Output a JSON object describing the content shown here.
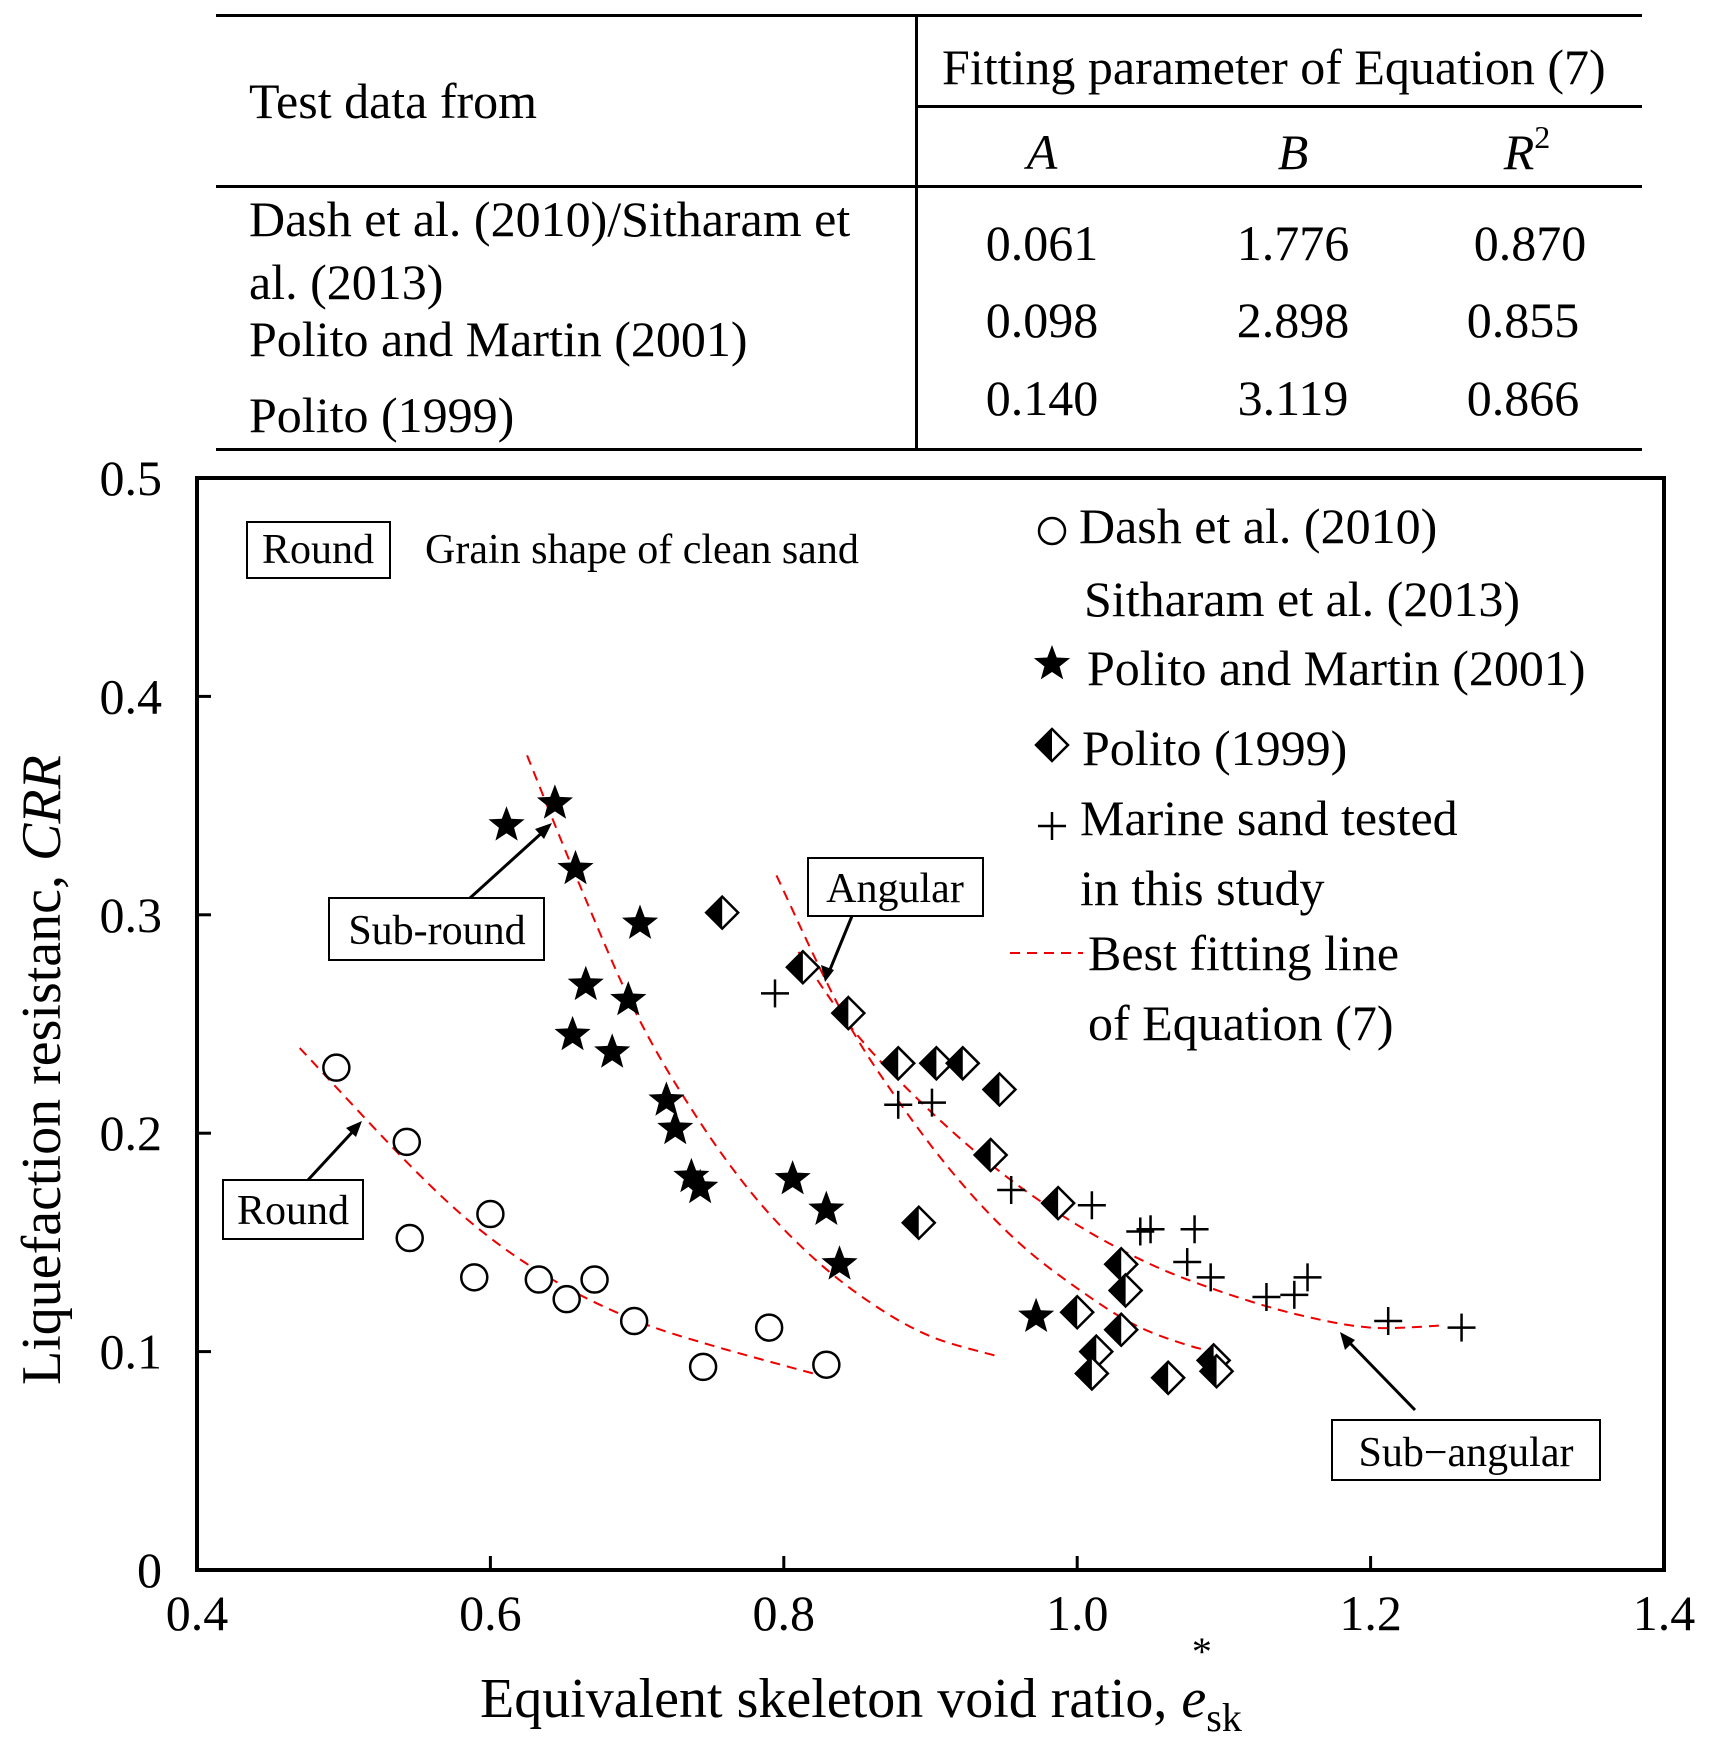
{
  "table": {
    "col_header_left": "Test data from",
    "col_header_group": "Fitting parameter of Equation (7)",
    "param_headers": {
      "a": "A",
      "b": "B",
      "r2_base": "R",
      "r2_sup": "2"
    },
    "rows": [
      {
        "line1": "Dash et al. (2010)/Sitharam et",
        "line2": "al. (2013)",
        "A": "0.061",
        "B": "1.776",
        "R2": "0.870"
      },
      {
        "line1": "Polito and Martin (2001)",
        "A": "0.098",
        "B": "2.898",
        "R2": "0.855"
      },
      {
        "line1": "Polito (1999)",
        "A": "0.140",
        "B": "3.119",
        "R2": "0.866"
      }
    ]
  },
  "chart_data": {
    "type": "scatter",
    "xlabel": "Equivalent skeleton void ratio, ",
    "xlabel_var": "e",
    "xlabel_sub": "sk",
    "xlabel_sup": "*",
    "ylabel": "Liquefaction resistanc, ",
    "ylabel_var": "CRR",
    "xlim": [
      0.4,
      1.4
    ],
    "ylim": [
      0,
      0.5
    ],
    "xticks": [
      "0.4",
      "0.6",
      "0.8",
      "1.0",
      "1.2",
      "1.4"
    ],
    "yticks": [
      "0",
      "0.1",
      "0.2",
      "0.3",
      "0.4",
      "0.5"
    ],
    "grid": false,
    "legend": {
      "position": "top-right",
      "entries": [
        {
          "marker": "circle",
          "line1": "Dash et al. (2010)",
          "line2": "Sitharam et al. (2013)"
        },
        {
          "marker": "star",
          "line1": "Polito and Martin (2001)"
        },
        {
          "marker": "diamond",
          "line1": "Polito (1999)"
        },
        {
          "marker": "plus",
          "line1": "Marine sand tested",
          "line2": "in this study"
        },
        {
          "marker": "dashed-line",
          "line1": "Best fitting line",
          "line2": "of Equation (7)"
        }
      ]
    },
    "header_box": "Round",
    "header_text": "Grain shape of clean sand",
    "annotations": [
      {
        "label": "Round",
        "x": 0.51,
        "y": 0.206
      },
      {
        "label": "Sub-round",
        "x": 0.64,
        "y": 0.336
      },
      {
        "label": "Angular",
        "x": 0.815,
        "y": 0.272
      },
      {
        "label": "Sub−angular",
        "x": 1.18,
        "y": 0.112
      }
    ],
    "series": [
      {
        "name": "Dash et al. (2010) / Sitharam et al. (2013)",
        "marker": "circle",
        "x": [
          0.495,
          0.543,
          0.545,
          0.589,
          0.6,
          0.633,
          0.652,
          0.671,
          0.698,
          0.745,
          0.79,
          0.829
        ],
        "y": [
          0.23,
          0.196,
          0.152,
          0.134,
          0.163,
          0.133,
          0.124,
          0.133,
          0.114,
          0.093,
          0.111,
          0.094
        ]
      },
      {
        "name": "Polito and Martin (2001)",
        "marker": "star",
        "x": [
          0.611,
          0.644,
          0.658,
          0.656,
          0.665,
          0.683,
          0.702,
          0.694,
          0.72,
          0.726,
          0.737,
          0.743,
          0.806,
          0.829,
          0.838,
          0.972
        ],
        "y": [
          0.341,
          0.351,
          0.321,
          0.245,
          0.268,
          0.237,
          0.296,
          0.261,
          0.215,
          0.202,
          0.18,
          0.175,
          0.179,
          0.165,
          0.14,
          0.116
        ]
      },
      {
        "name": "Polito (1999)",
        "marker": "diamond",
        "x": [
          0.758,
          0.813,
          0.844,
          0.878,
          0.904,
          0.922,
          0.947,
          0.941,
          0.892,
          0.987,
          1.03,
          1.033,
          1.0,
          1.013,
          1.01,
          1.03,
          1.062,
          1.093,
          1.095
        ],
        "y": [
          0.301,
          0.276,
          0.255,
          0.232,
          0.232,
          0.232,
          0.22,
          0.19,
          0.159,
          0.168,
          0.14,
          0.128,
          0.118,
          0.1,
          0.09,
          0.11,
          0.088,
          0.096,
          0.091
        ],
        "marker_style": "half-filled"
      },
      {
        "name": "Marine sand tested in this study",
        "marker": "plus",
        "x": [
          0.794,
          0.878,
          0.901,
          0.955,
          1.01,
          1.043,
          1.05,
          1.08,
          1.075,
          1.091,
          1.129,
          1.148,
          1.157,
          1.212,
          1.262
        ],
        "y": [
          0.264,
          0.213,
          0.214,
          0.174,
          0.167,
          0.155,
          0.156,
          0.156,
          0.141,
          0.134,
          0.125,
          0.126,
          0.134,
          0.114,
          0.111
        ]
      }
    ],
    "fit_lines": [
      {
        "name": "Round fit",
        "x": [
          0.47,
          0.55,
          0.6,
          0.65,
          0.7,
          0.75,
          0.82
        ],
        "y": [
          0.239,
          0.182,
          0.152,
          0.13,
          0.114,
          0.103,
          0.09
        ]
      },
      {
        "name": "Sub-round fit",
        "x": [
          0.625,
          0.66,
          0.7,
          0.74,
          0.78,
          0.82,
          0.86,
          0.9,
          0.945
        ],
        "y": [
          0.373,
          0.315,
          0.254,
          0.208,
          0.171,
          0.143,
          0.122,
          0.107,
          0.098
        ]
      },
      {
        "name": "Angular fit",
        "x": [
          0.795,
          0.84,
          0.88,
          0.92,
          0.96,
          1.0,
          1.04,
          1.08,
          1.095
        ],
        "y": [
          0.318,
          0.255,
          0.213,
          0.178,
          0.15,
          0.129,
          0.112,
          0.102,
          0.101
        ]
      },
      {
        "name": "Sub-angular fit",
        "x": [
          0.81,
          0.85,
          0.9,
          0.95,
          1.0,
          1.05,
          1.1,
          1.15,
          1.2,
          1.25
        ],
        "y": [
          0.283,
          0.245,
          0.21,
          0.181,
          0.158,
          0.14,
          0.127,
          0.117,
          0.111,
          0.112
        ]
      }
    ]
  }
}
